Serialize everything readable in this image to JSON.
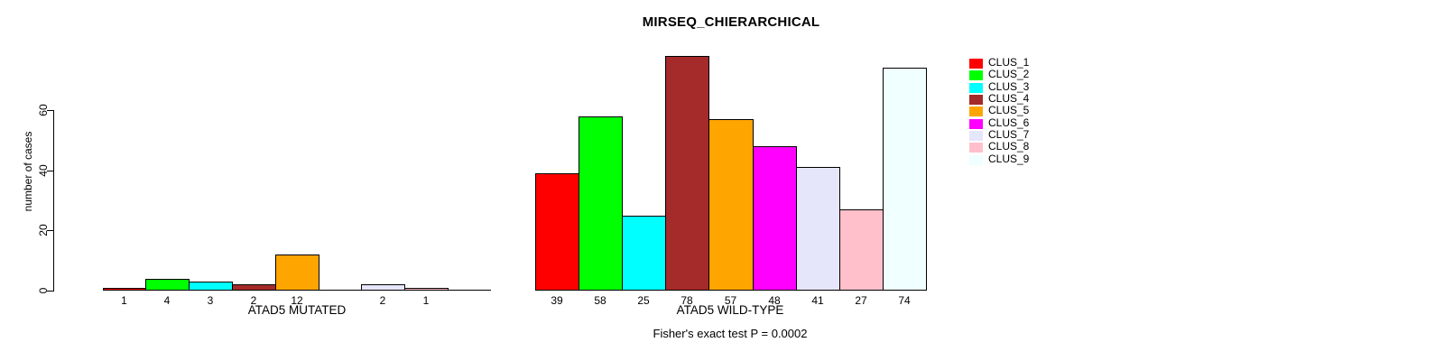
{
  "chart_data": {
    "type": "bar",
    "title": "MIRSEQ_CHIERARCHICAL",
    "ylabel": "number of cases",
    "xlabel": "",
    "ylim": [
      0,
      80
    ],
    "yticks": [
      0,
      20,
      40,
      60
    ],
    "grid": false,
    "legend_position": "top-right",
    "categories": [
      "CLUS_1",
      "CLUS_2",
      "CLUS_3",
      "CLUS_4",
      "CLUS_5",
      "CLUS_6",
      "CLUS_7",
      "CLUS_8",
      "CLUS_9"
    ],
    "colors": [
      "#ff0000",
      "#00ff00",
      "#00ffff",
      "#a52a2a",
      "#ffa500",
      "#ff00ff",
      "#e6e6fa",
      "#ffc0cb",
      "#f0ffff"
    ],
    "series": [
      {
        "name": "ATAD5 MUTATED",
        "values": [
          1,
          4,
          3,
          2,
          12,
          0,
          2,
          1,
          0
        ]
      },
      {
        "name": "ATAD5 WILD-TYPE",
        "values": [
          39,
          58,
          25,
          78,
          57,
          48,
          41,
          27,
          74
        ]
      }
    ],
    "bar_value_labels_shown": true,
    "zero_bars_hidden": true,
    "footnote": "Fisher's exact test P = 0.0002",
    "text_color": "#000000",
    "background_color": "#ffffff"
  }
}
